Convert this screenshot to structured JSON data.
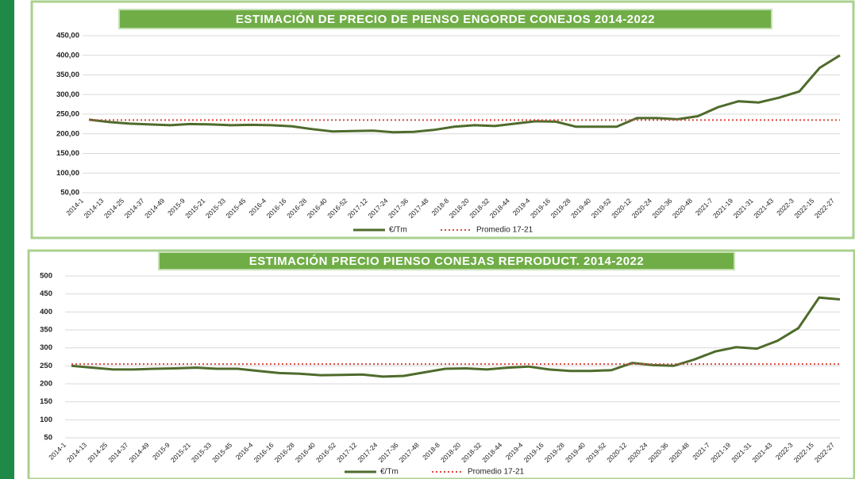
{
  "chart_data": [
    {
      "type": "line",
      "title": "ESTIMACIÓN DE PRECIO DE PIENSO ENGORDE CONEJOS 2014-2022",
      "categories": [
        "2014-1",
        "2014-13",
        "2014-25",
        "2014-37",
        "2014-49",
        "2015-9",
        "2015-21",
        "2015-33",
        "2015-45",
        "2016-4",
        "2016-16",
        "2016-28",
        "2016-40",
        "2016-52",
        "2017-12",
        "2017-24",
        "2017-36",
        "2017-48",
        "2018-8",
        "2018-20",
        "2018-32",
        "2018-44",
        "2019-4",
        "2019-16",
        "2019-28",
        "2019-40",
        "2019-52",
        "2020-12",
        "2020-24",
        "2020-36",
        "2020-48",
        "2021-7",
        "2021-19",
        "2021-31",
        "2021-43",
        "2022-3",
        "2022-15",
        "2022-27"
      ],
      "series": [
        {
          "name": "€/Tm",
          "color": "#4f6b2c",
          "values": [
            236,
            230,
            226,
            224,
            222,
            225,
            224,
            222,
            223,
            222,
            219,
            212,
            206,
            207,
            208,
            204,
            205,
            210,
            218,
            222,
            220,
            226,
            232,
            231,
            218,
            218,
            218,
            240,
            240,
            237,
            245,
            268,
            283,
            280,
            292,
            308,
            368,
            400
          ]
        },
        {
          "name": "Promedio 17-21",
          "color": "#d9463e",
          "dashed": true,
          "values": [
            235,
            235,
            235,
            235,
            235,
            235,
            235,
            235,
            235,
            235,
            235,
            235,
            235,
            235,
            235,
            235,
            235,
            235,
            235,
            235,
            235,
            235,
            235,
            235,
            235,
            235,
            235,
            235,
            235,
            235,
            235,
            235,
            235,
            235,
            235,
            235,
            235,
            235
          ]
        }
      ],
      "ylim": [
        50,
        450
      ],
      "yticks": [
        {
          "value": 50,
          "label": "50,00"
        },
        {
          "value": 100,
          "label": "100,00"
        },
        {
          "value": 150,
          "label": "150,00"
        },
        {
          "value": 200,
          "label": "200,00"
        },
        {
          "value": 250,
          "label": "250,00"
        },
        {
          "value": 300,
          "label": "300,00"
        },
        {
          "value": 350,
          "label": "350,00"
        },
        {
          "value": 400,
          "label": "400,00"
        },
        {
          "value": 450,
          "label": "450,00"
        }
      ],
      "grid": true,
      "legend": "bottom"
    },
    {
      "type": "line",
      "title": "ESTIMACIÓN PRECIO PIENSO CONEJAS REPRODUCT. 2014-2022",
      "categories": [
        "2014-1",
        "2014-13",
        "2014-25",
        "2014-37",
        "2014-49",
        "2015-9",
        "2015-21",
        "2015-33",
        "2015-45",
        "2016-4",
        "2016-16",
        "2016-28",
        "2016-40",
        "2016-52",
        "2017-12",
        "2017-24",
        "2017-36",
        "2017-48",
        "2018-8",
        "2018-20",
        "2018-32",
        "2018-44",
        "2019-4",
        "2019-16",
        "2019-28",
        "2019-40",
        "2019-52",
        "2020-12",
        "2020-24",
        "2020-36",
        "2020-48",
        "2021-7",
        "2021-19",
        "2021-31",
        "2021-43",
        "2022-3",
        "2022-15",
        "2022-27"
      ],
      "series": [
        {
          "name": "€/Tm",
          "color": "#4f6b2c",
          "values": [
            250,
            245,
            240,
            240,
            242,
            243,
            245,
            242,
            242,
            236,
            230,
            228,
            224,
            225,
            226,
            220,
            222,
            232,
            242,
            243,
            240,
            245,
            248,
            240,
            236,
            236,
            238,
            258,
            252,
            250,
            268,
            290,
            302,
            298,
            320,
            355,
            440,
            435
          ]
        },
        {
          "name": "Promedio 17-21",
          "color": "#d9463e",
          "dashed": true,
          "values": [
            255,
            255,
            255,
            255,
            255,
            255,
            255,
            255,
            255,
            255,
            255,
            255,
            255,
            255,
            255,
            255,
            255,
            255,
            255,
            255,
            255,
            255,
            255,
            255,
            255,
            255,
            255,
            255,
            255,
            255,
            255,
            255,
            255,
            255,
            255,
            255,
            255,
            255
          ]
        }
      ],
      "ylim": [
        50,
        500
      ],
      "yticks": [
        50,
        100,
        150,
        200,
        250,
        300,
        350,
        400,
        450,
        500
      ],
      "grid": true,
      "legend": "bottom"
    }
  ]
}
